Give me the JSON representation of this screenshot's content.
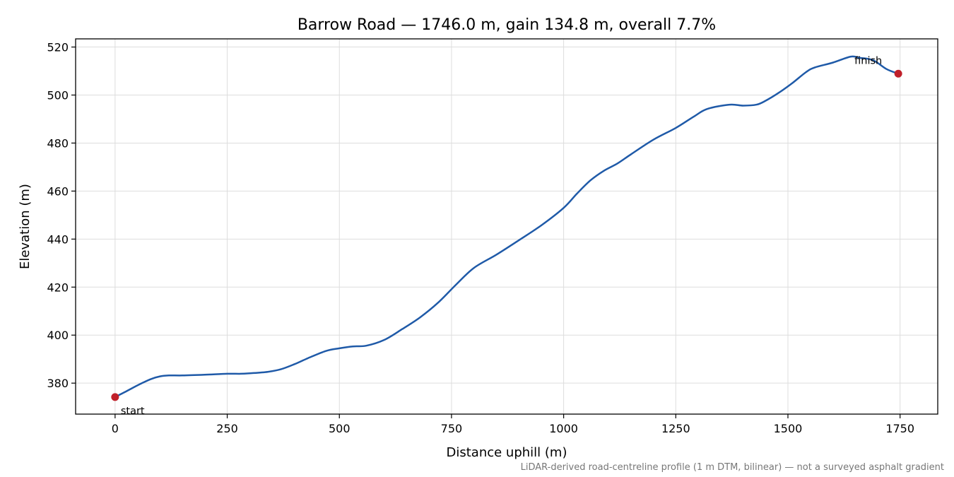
{
  "chart_data": {
    "type": "line",
    "title": "Barrow Road — 1746.0 m, gain 134.8 m, overall 7.7%",
    "xlabel": "Distance uphill (m)",
    "ylabel": "Elevation (m)",
    "footnote": "LiDAR-derived road-centreline profile (1 m DTM, bilinear) — not a surveyed asphalt gradient",
    "xlim": [
      -88,
      1834
    ],
    "ylim": [
      367.1,
      523.4
    ],
    "xticks": [
      0,
      250,
      500,
      750,
      1000,
      1250,
      1500,
      1750
    ],
    "yticks": [
      380,
      400,
      420,
      440,
      460,
      480,
      500,
      520
    ],
    "grid": true,
    "colors": {
      "line": "#1f5aa8",
      "marker": "#c0202a",
      "grid": "#dddddd",
      "footnote": "#777777"
    },
    "series": [
      {
        "x": [
          0,
          20,
          40,
          60,
          80,
          100,
          120,
          150,
          200,
          250,
          280,
          300,
          340,
          370,
          400,
          430,
          470,
          500,
          530,
          560,
          600,
          640,
          680,
          720,
          760,
          800,
          850,
          900,
          950,
          1000,
          1030,
          1060,
          1090,
          1120,
          1150,
          1200,
          1250,
          1290,
          1320,
          1370,
          1400,
          1430,
          1450,
          1480,
          1510,
          1540,
          1560,
          1600,
          1640,
          1660,
          1690,
          1720,
          1746
        ],
        "y": [
          374.2,
          376.1,
          378.1,
          380.0,
          381.7,
          382.8,
          383.2,
          383.2,
          383.5,
          383.9,
          383.9,
          384.1,
          384.7,
          385.8,
          387.9,
          390.4,
          393.4,
          394.5,
          395.3,
          395.6,
          398.0,
          402.5,
          407.4,
          413.5,
          421.0,
          428.0,
          433.5,
          439.5,
          445.7,
          453.0,
          459.0,
          464.5,
          468.5,
          471.5,
          475.3,
          481.4,
          486.3,
          491.0,
          494.2,
          496.0,
          495.6,
          496.0,
          497.6,
          501.0,
          505.0,
          509.5,
          511.5,
          513.5,
          516.0,
          515.5,
          514.5,
          510.8,
          508.9
        ]
      }
    ],
    "annotations": [
      {
        "text": "start",
        "x": 0,
        "y": 374.2
      },
      {
        "text": "finish",
        "x": 1746,
        "y": 508.9
      }
    ]
  }
}
